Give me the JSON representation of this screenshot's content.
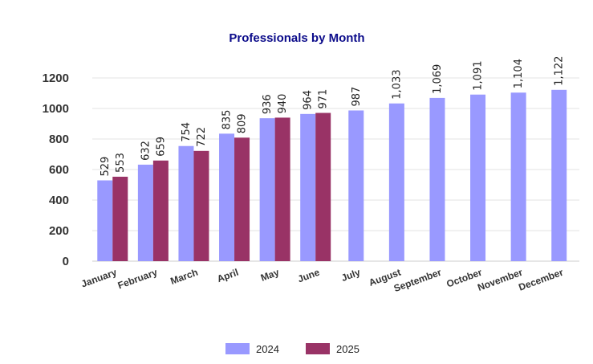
{
  "chart_data": {
    "type": "bar",
    "title": "Professionals by Month",
    "categories": [
      "January",
      "February",
      "March",
      "April",
      "May",
      "June",
      "July",
      "August",
      "September",
      "October",
      "November",
      "December"
    ],
    "series": [
      {
        "name": "2024",
        "color": "#9999ff",
        "values": [
          529,
          632,
          754,
          835,
          936,
          964,
          987,
          1033,
          1069,
          1091,
          1104,
          1122
        ],
        "labels": [
          "529",
          "632",
          "754",
          "835",
          "936",
          "964",
          "987",
          "1,033",
          "1,069",
          "1,091",
          "1,104",
          "1,122"
        ]
      },
      {
        "name": "2025",
        "color": "#993366",
        "values": [
          553,
          659,
          722,
          809,
          940,
          971,
          null,
          null,
          null,
          null,
          null,
          null
        ],
        "labels": [
          "553",
          "659",
          "722",
          "809",
          "940",
          "971",
          null,
          null,
          null,
          null,
          null,
          null
        ]
      }
    ],
    "ylim": [
      0,
      1200
    ],
    "yticks": [
      "0",
      "200",
      "400",
      "600",
      "800",
      "1000",
      "1200"
    ],
    "grid": true,
    "legend_position": "bottom-center"
  }
}
